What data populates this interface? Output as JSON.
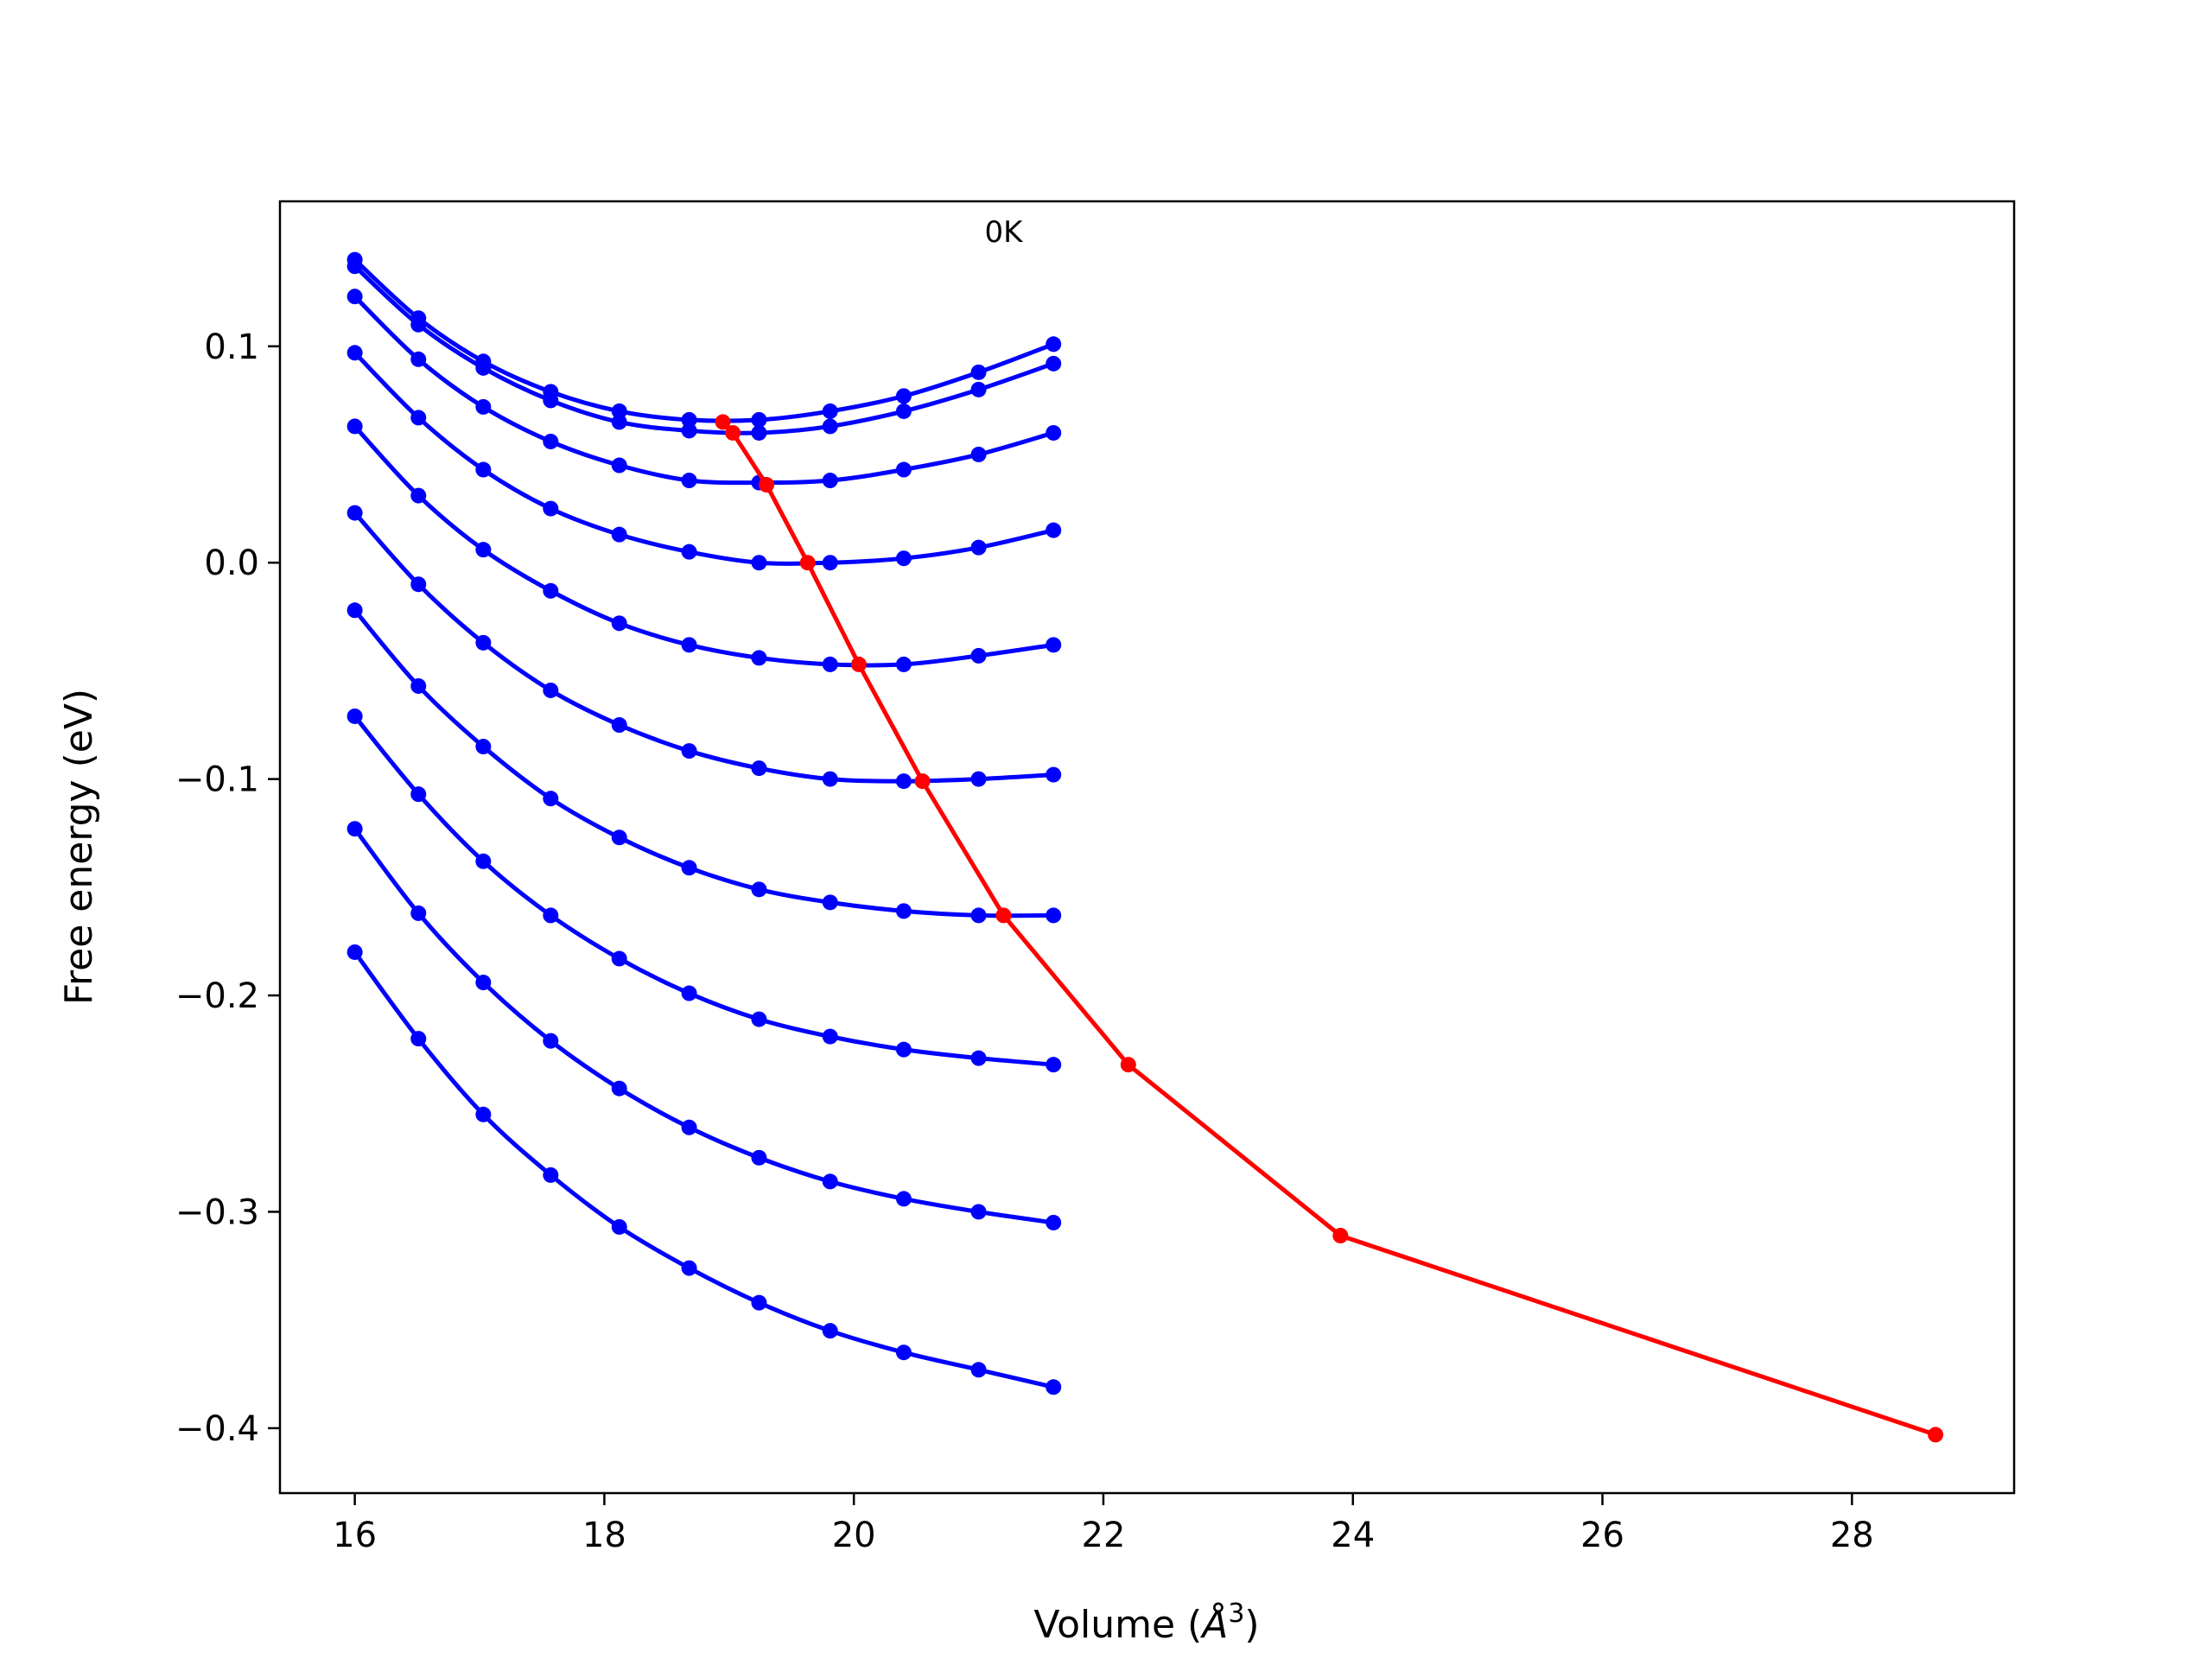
{
  "chart_data": {
    "type": "line",
    "title": "",
    "xlabel": "Volume (",
    "xlabel_symbol": "Å",
    "xlabel_exp": "3",
    "xlabel_close": ")",
    "ylabel": "Free energy (eV)",
    "xlim": [
      15.4,
      29.3
    ],
    "ylim": [
      -0.43,
      0.167
    ],
    "xticks": [
      16,
      18,
      20,
      22,
      24,
      26,
      28
    ],
    "xtick_labels": [
      "16",
      "18",
      "20",
      "22",
      "24",
      "26",
      "28"
    ],
    "yticks": [
      -0.4,
      -0.3,
      -0.2,
      -0.1,
      0.0,
      0.1
    ],
    "ytick_labels": [
      "−0.4",
      "−0.3",
      "−0.2",
      "−0.1",
      "0.0",
      "0.1"
    ],
    "grid": false,
    "annotations": [
      {
        "text": "0K",
        "x": 21.2,
        "y": 0.153
      }
    ],
    "colors": {
      "curves": "#0000ff",
      "minima": "#ff0000"
    },
    "x": [
      16.0,
      16.51,
      17.03,
      17.57,
      18.12,
      18.68,
      19.24,
      19.81,
      20.4,
      21.0,
      21.6
    ],
    "series": [
      {
        "values": [
          0.14,
          0.113,
          0.093,
          0.079,
          0.07,
          0.066,
          0.066,
          0.07,
          0.077,
          0.088,
          0.101
        ]
      },
      {
        "values": [
          0.137,
          0.11,
          0.09,
          0.075,
          0.065,
          0.061,
          0.06,
          0.063,
          0.07,
          0.08,
          0.092
        ]
      },
      {
        "values": [
          0.123,
          0.094,
          0.072,
          0.056,
          0.045,
          0.038,
          0.037,
          0.038,
          0.043,
          0.05,
          0.06
        ]
      },
      {
        "values": [
          0.097,
          0.067,
          0.043,
          0.025,
          0.013,
          0.005,
          0.0,
          0.0,
          0.002,
          0.007,
          0.015
        ]
      },
      {
        "values": [
          0.063,
          0.031,
          0.006,
          -0.013,
          -0.028,
          -0.038,
          -0.044,
          -0.047,
          -0.047,
          -0.043,
          -0.038
        ]
      },
      {
        "values": [
          0.023,
          -0.01,
          -0.037,
          -0.059,
          -0.075,
          -0.087,
          -0.095,
          -0.1,
          -0.101,
          -0.1,
          -0.098
        ]
      },
      {
        "values": [
          -0.022,
          -0.057,
          -0.085,
          -0.109,
          -0.127,
          -0.141,
          -0.151,
          -0.157,
          -0.161,
          -0.163,
          -0.163
        ]
      },
      {
        "values": [
          -0.071,
          -0.107,
          -0.138,
          -0.163,
          -0.183,
          -0.199,
          -0.211,
          -0.219,
          -0.225,
          -0.229,
          -0.232
        ]
      },
      {
        "values": [
          -0.123,
          -0.162,
          -0.194,
          -0.221,
          -0.243,
          -0.261,
          -0.275,
          -0.286,
          -0.294,
          -0.3,
          -0.305
        ]
      },
      {
        "values": [
          -0.18,
          -0.22,
          -0.255,
          -0.283,
          -0.307,
          -0.326,
          -0.342,
          -0.355,
          -0.365,
          -0.373,
          -0.381
        ]
      }
    ],
    "minima": {
      "x": [
        18.95,
        19.03,
        19.3,
        19.63,
        20.04,
        20.55,
        21.2,
        22.2,
        23.9,
        28.67
      ],
      "y": [
        0.065,
        0.06,
        0.036,
        0.0,
        -0.047,
        -0.101,
        -0.163,
        -0.232,
        -0.311,
        -0.403
      ]
    }
  }
}
